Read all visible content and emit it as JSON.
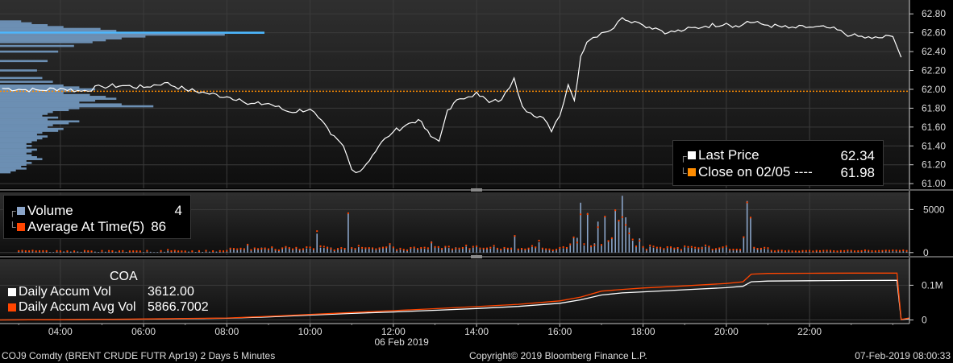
{
  "chart_data": [
    {
      "type": "line",
      "panel": "price",
      "yticks": [
        "62.80",
        "62.60",
        "62.40",
        "62.20",
        "62.00",
        "61.80",
        "61.60",
        "61.40",
        "61.20",
        "61.00"
      ],
      "ytick_values": [
        62.8,
        62.6,
        62.4,
        62.2,
        62.0,
        61.8,
        61.6,
        61.4,
        61.2,
        61.0
      ],
      "ylim": [
        60.95,
        62.93
      ],
      "xlim": [
        2.55,
        24.4
      ],
      "reference_line": {
        "value": 61.98,
        "color": "#ff8c00",
        "style": "dotted"
      },
      "series": [
        {
          "name": "Last Price",
          "color": "#ffffff",
          "x": [
            2.6,
            3.0,
            3.5,
            4.0,
            4.5,
            5.0,
            5.5,
            6.0,
            6.5,
            7.0,
            7.5,
            8.0,
            8.3,
            8.5,
            9.0,
            9.5,
            10.0,
            10.2,
            10.5,
            10.8,
            11.0,
            11.2,
            11.5,
            11.8,
            12.0,
            12.3,
            12.6,
            12.9,
            13.1,
            13.3,
            13.6,
            13.8,
            14.0,
            14.3,
            14.6,
            14.8,
            14.9,
            15.1,
            15.3,
            15.6,
            15.8,
            16.0,
            16.2,
            16.35,
            16.5,
            16.65,
            16.8,
            17.0,
            17.3,
            17.5,
            17.8,
            18.0,
            18.3,
            18.6,
            19.0,
            19.5,
            20.0,
            20.3,
            20.5,
            21.0,
            21.5,
            22.0,
            22.5,
            23.0,
            23.5,
            24.0,
            24.1,
            24.2
          ],
          "values": [
            62.01,
            62.0,
            61.99,
            62.01,
            61.98,
            62.03,
            62.04,
            62.02,
            62.07,
            62.0,
            61.96,
            61.92,
            61.9,
            61.84,
            61.85,
            61.76,
            61.79,
            61.7,
            61.52,
            61.4,
            61.15,
            61.13,
            61.3,
            61.48,
            61.55,
            61.62,
            61.68,
            61.5,
            61.45,
            61.78,
            61.9,
            61.92,
            61.97,
            61.86,
            61.89,
            62.02,
            62.12,
            61.82,
            61.75,
            61.7,
            61.55,
            61.72,
            62.05,
            61.88,
            62.35,
            62.5,
            62.55,
            62.6,
            62.65,
            62.76,
            62.72,
            62.68,
            62.65,
            62.6,
            62.63,
            62.67,
            62.7,
            62.66,
            62.72,
            62.68,
            62.65,
            62.66,
            62.65,
            62.57,
            62.54,
            62.56,
            62.45,
            62.34
          ]
        },
        {
          "name": "Close on 02/05",
          "color": "#ff8c00",
          "x": [
            2.6,
            24.4
          ],
          "values": [
            61.98,
            61.98
          ]
        }
      ],
      "volume_profile": {
        "color": "#6c8fb3",
        "highlight_color": "#4db8ff",
        "price_levels": [
          62.72,
          62.7,
          62.68,
          62.66,
          62.64,
          62.62,
          62.6,
          62.58,
          62.56,
          62.54,
          62.52,
          62.5,
          62.46,
          62.4,
          62.3,
          62.2,
          62.12,
          62.08,
          62.04,
          62.02,
          62.0,
          61.98,
          61.96,
          61.94,
          61.92,
          61.9,
          61.88,
          61.86,
          61.84,
          61.82,
          61.8,
          61.78,
          61.76,
          61.74,
          61.72,
          61.7,
          61.68,
          61.66,
          61.64,
          61.62,
          61.6,
          61.58,
          61.56,
          61.54,
          61.52,
          61.5,
          61.48,
          61.46,
          61.44,
          61.42,
          61.4,
          61.38,
          61.36,
          61.34,
          61.32,
          61.3,
          61.28,
          61.26,
          61.24,
          61.22,
          61.2,
          61.18,
          61.16,
          61.14,
          61.12
        ],
        "relative_volume": [
          0.08,
          0.12,
          0.18,
          0.24,
          0.38,
          0.44,
          1.0,
          0.85,
          0.55,
          0.46,
          0.4,
          0.35,
          0.28,
          0.22,
          0.18,
          0.14,
          0.16,
          0.2,
          0.24,
          0.3,
          0.36,
          0.28,
          0.24,
          0.34,
          0.4,
          0.44,
          0.36,
          0.3,
          0.46,
          0.58,
          0.3,
          0.26,
          0.2,
          0.18,
          0.16,
          0.22,
          0.18,
          0.3,
          0.26,
          0.2,
          0.18,
          0.24,
          0.22,
          0.16,
          0.14,
          0.18,
          0.16,
          0.14,
          0.12,
          0.1,
          0.12,
          0.1,
          0.14,
          0.12,
          0.1,
          0.12,
          0.14,
          0.16,
          0.1,
          0.12,
          0.1,
          0.08,
          0.1,
          0.06,
          0.04
        ]
      }
    },
    {
      "type": "bar",
      "panel": "volume",
      "yticks": [
        "5000",
        "0"
      ],
      "ytick_values": [
        5000,
        0
      ],
      "ylim": [
        -300,
        7000
      ],
      "xlim": [
        2.55,
        24.4
      ],
      "series": [
        {
          "name": "Volume",
          "color": "#8aa4c8",
          "value_shown": "4"
        },
        {
          "name": "Average At Time(5)",
          "color": "#ff4500",
          "value_shown": "86"
        }
      ]
    },
    {
      "type": "line",
      "panel": "accumulated",
      "yticks": [
        "0.1M",
        "0"
      ],
      "ytick_values": [
        100000,
        0
      ],
      "ylim": [
        -8000,
        175000
      ],
      "xlim": [
        2.55,
        24.4
      ],
      "title": "COA",
      "series": [
        {
          "name": "Daily Accum Vol",
          "color": "#ffffff",
          "value_shown": "3612.00",
          "x": [
            2.55,
            4,
            6,
            8,
            9,
            10,
            11,
            12,
            13,
            14,
            15,
            16,
            16.5,
            17,
            17.5,
            18,
            19,
            20,
            20.4,
            20.6,
            21,
            22,
            23,
            24,
            24.1,
            24.2,
            24.4
          ],
          "values": [
            0,
            800,
            2500,
            5000,
            9000,
            14000,
            19000,
            23000,
            28000,
            33000,
            39000,
            48000,
            58000,
            72000,
            78000,
            81000,
            87000,
            93000,
            97000,
            110000,
            112000,
            113000,
            113500,
            114000,
            114000,
            1200,
            3612
          ]
        },
        {
          "name": "Daily Accum Avg Vol",
          "color": "#ff4500",
          "value_shown": "5866.7002",
          "x": [
            2.55,
            4,
            6,
            8,
            9,
            10,
            11,
            12,
            13,
            14,
            15,
            16,
            16.5,
            17,
            17.5,
            18,
            19,
            20,
            20.4,
            20.6,
            21,
            22,
            23,
            24,
            24.1,
            24.2,
            24.4
          ],
          "values": [
            0,
            900,
            2800,
            5600,
            10500,
            16000,
            21500,
            27000,
            32500,
            38500,
            45000,
            55000,
            66000,
            83000,
            88000,
            92000,
            98000,
            105000,
            110000,
            132000,
            134000,
            134500,
            135000,
            135000,
            135000,
            1500,
            5867
          ]
        }
      ]
    }
  ],
  "xaxis": {
    "ticks": [
      "04:00",
      "06:00",
      "08:00",
      "10:00",
      "12:00",
      "14:00",
      "16:00",
      "18:00",
      "20:00",
      "22:00"
    ],
    "tick_values": [
      4,
      6,
      8,
      10,
      12,
      14,
      16,
      18,
      20,
      22
    ],
    "date_label": "06 Feb 2019"
  },
  "legends": {
    "price": {
      "items": [
        {
          "label": "Last Price",
          "value": "62.34",
          "color": "#ffffff"
        },
        {
          "label": "Close on 02/05 ----",
          "value": "61.98",
          "color": "#ff8c00"
        }
      ]
    },
    "volume": {
      "items": [
        {
          "label": "Volume",
          "value": "4",
          "color": "#8aa4c8"
        },
        {
          "label": "Average At Time(5)",
          "value": "86",
          "color": "#ff4500"
        }
      ]
    },
    "accum": {
      "title": "COA",
      "items": [
        {
          "label": "Daily Accum Vol",
          "value": "3612.00",
          "color": "#ffffff"
        },
        {
          "label": "Daily Accum Avg Vol",
          "value": "5866.7002",
          "color": "#ff4500"
        }
      ]
    }
  },
  "footer": {
    "security": "COJ9 Comdty (BRENT CRUDE FUTR  Apr19) 2 Days 5 Minutes",
    "copyright": "Copyright© 2019 Bloomberg Finance L.P.",
    "timestamp": "07-Feb-2019 08:00:33"
  }
}
